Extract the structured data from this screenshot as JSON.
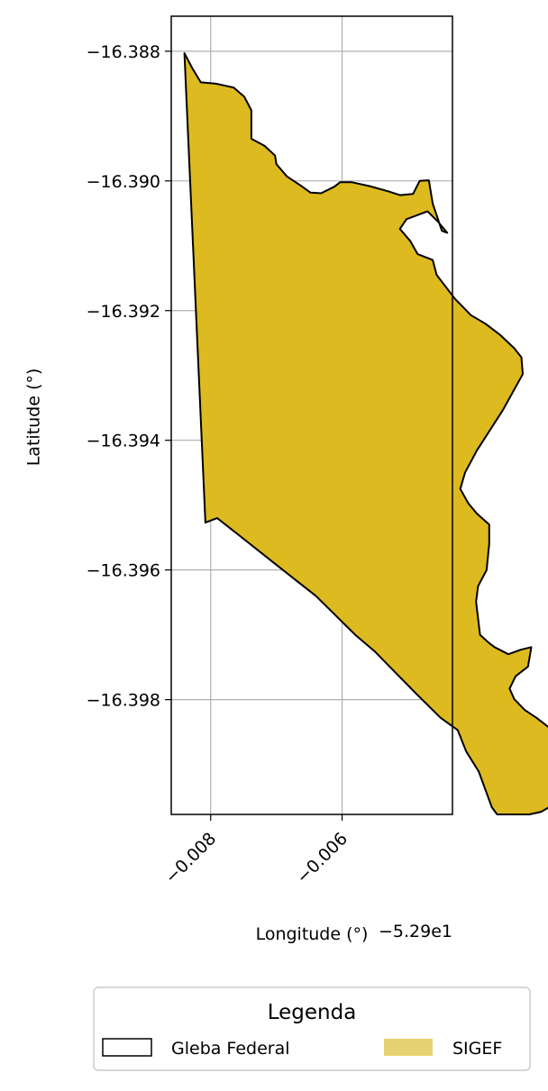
{
  "chart_data": {
    "type": "map",
    "xlabel": "Longitude (°)",
    "ylabel": "Latitude (°)",
    "x_offset_text": "−5.29e1",
    "xlim": [
      -52.9086,
      -52.90432
    ],
    "ylim": [
      -16.39977,
      -16.38746
    ],
    "grid": true,
    "x_ticks": [
      {
        "value": -52.908,
        "label": "−0.008"
      },
      {
        "value": -52.906,
        "label": "−0.006"
      }
    ],
    "y_ticks": [
      {
        "value": -16.388,
        "label": "−16.388"
      },
      {
        "value": -16.39,
        "label": "−16.390"
      },
      {
        "value": -16.392,
        "label": "−16.392"
      },
      {
        "value": -16.394,
        "label": "−16.394"
      },
      {
        "value": -16.396,
        "label": "−16.396"
      },
      {
        "value": -16.398,
        "label": "−16.398"
      }
    ],
    "series": [
      {
        "name": "SIGEF",
        "fill": "#ddba1f",
        "stroke": "#000000",
        "polygon": [
          [
            -52.9084,
            -16.38803
          ],
          [
            -52.90828,
            -16.38826
          ],
          [
            -52.90815,
            -16.38848
          ],
          [
            -52.90792,
            -16.3885
          ],
          [
            -52.90765,
            -16.38856
          ],
          [
            -52.90749,
            -16.3887
          ],
          [
            -52.90738,
            -16.38891
          ],
          [
            -52.90738,
            -16.38935
          ],
          [
            -52.90718,
            -16.38946
          ],
          [
            -52.90702,
            -16.38961
          ],
          [
            -52.907,
            -16.38974
          ],
          [
            -52.90684,
            -16.38993
          ],
          [
            -52.90663,
            -16.39007
          ],
          [
            -52.90648,
            -16.39018
          ],
          [
            -52.90632,
            -16.39019
          ],
          [
            -52.90612,
            -16.39009
          ],
          [
            -52.90603,
            -16.39002
          ],
          [
            -52.90585,
            -16.39002
          ],
          [
            -52.90558,
            -16.39008
          ],
          [
            -52.9053,
            -16.39016
          ],
          [
            -52.90512,
            -16.39022
          ],
          [
            -52.90492,
            -16.3902
          ],
          [
            -52.90482,
            -16.39
          ],
          [
            -52.90468,
            -16.38999
          ],
          [
            -52.90462,
            -16.39035
          ],
          [
            -52.90448,
            -16.39077
          ],
          [
            -52.9044,
            -16.3908
          ],
          [
            -52.90454,
            -16.39063
          ],
          [
            -52.9047,
            -16.39047
          ],
          [
            -52.90502,
            -16.39059
          ],
          [
            -52.90512,
            -16.39074
          ],
          [
            -52.90496,
            -16.39093
          ],
          [
            -52.90485,
            -16.39113
          ],
          [
            -52.90462,
            -16.39122
          ],
          [
            -52.90456,
            -16.39145
          ],
          [
            -52.90428,
            -16.39182
          ],
          [
            -52.90404,
            -16.39207
          ],
          [
            -52.90382,
            -16.3922
          ],
          [
            -52.9036,
            -16.39237
          ],
          [
            -52.90338,
            -16.39258
          ],
          [
            -52.90327,
            -16.39272
          ],
          [
            -52.90325,
            -16.39298
          ],
          [
            -52.90355,
            -16.39353
          ],
          [
            -52.90395,
            -16.39416
          ],
          [
            -52.90413,
            -16.3945
          ],
          [
            -52.9042,
            -16.39475
          ],
          [
            -52.90408,
            -16.39497
          ],
          [
            -52.90395,
            -16.39513
          ],
          [
            -52.90376,
            -16.3953
          ],
          [
            -52.90376,
            -16.39559
          ],
          [
            -52.9038,
            -16.396
          ],
          [
            -52.90393,
            -16.39625
          ],
          [
            -52.90396,
            -16.39649
          ],
          [
            -52.9039,
            -16.397
          ],
          [
            -52.90377,
            -16.39712
          ],
          [
            -52.90368,
            -16.39719
          ],
          [
            -52.90347,
            -16.3973
          ],
          [
            -52.90328,
            -16.39723
          ],
          [
            -52.90312,
            -16.39719
          ],
          [
            -52.90317,
            -16.39749
          ],
          [
            -52.90336,
            -16.39764
          ],
          [
            -52.90345,
            -16.39783
          ],
          [
            -52.90338,
            -16.39799
          ],
          [
            -52.90322,
            -16.39816
          ],
          [
            -52.90304,
            -16.39828
          ],
          [
            -52.90285,
            -16.39843
          ],
          [
            -52.90263,
            -16.39863
          ],
          [
            -52.90256,
            -16.39887
          ],
          [
            -52.9026,
            -16.39903
          ],
          [
            -52.90268,
            -16.39913
          ],
          [
            -52.90272,
            -16.39948
          ],
          [
            -52.9028,
            -16.39963
          ],
          [
            -52.90297,
            -16.39973
          ],
          [
            -52.90315,
            -16.39977
          ],
          [
            -52.90364,
            -16.39977
          ],
          [
            -52.90372,
            -16.39966
          ],
          [
            -52.90392,
            -16.39911
          ],
          [
            -52.90411,
            -16.3988
          ],
          [
            -52.90424,
            -16.39847
          ],
          [
            -52.9045,
            -16.39828
          ],
          [
            -52.90488,
            -16.3979
          ],
          [
            -52.9052,
            -16.39757
          ],
          [
            -52.9055,
            -16.39726
          ],
          [
            -52.9058,
            -16.397
          ],
          [
            -52.906,
            -16.3968
          ],
          [
            -52.9062,
            -16.3966
          ],
          [
            -52.9064,
            -16.3964
          ],
          [
            -52.90665,
            -16.3962
          ],
          [
            -52.9069,
            -16.396
          ],
          [
            -52.90715,
            -16.3958
          ],
          [
            -52.9074,
            -16.3956
          ],
          [
            -52.90765,
            -16.3954
          ],
          [
            -52.9079,
            -16.3952
          ],
          [
            -52.90808,
            -16.39527
          ],
          [
            -52.9084,
            -16.38803
          ]
        ]
      },
      {
        "name": "Gleba Federal",
        "fill": "none",
        "stroke": "#000000"
      }
    ],
    "legend": {
      "title": "Legenda",
      "placement": "bottom-center",
      "entries": [
        {
          "label": "Gleba Federal",
          "style": "outline"
        },
        {
          "label": "SIGEF",
          "style": "fill",
          "color": "#e6d272"
        }
      ]
    }
  }
}
